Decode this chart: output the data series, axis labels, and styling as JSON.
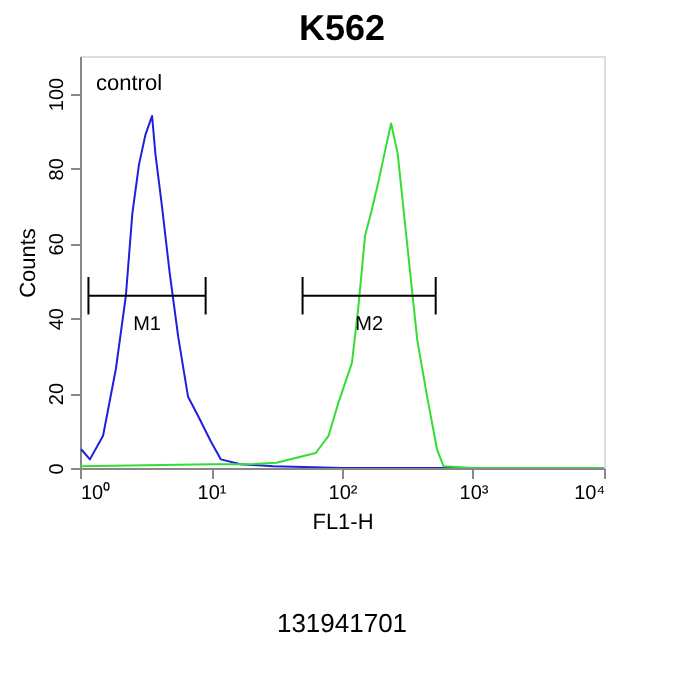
{
  "chart_data": {
    "type": "line",
    "title": "K562",
    "xlabel": "FL1-H",
    "ylabel": "Counts",
    "series": [
      {
        "color": "#1f1fdd",
        "x": [
          1.02,
          1.19,
          1.5,
          1.88,
          2.24,
          2.51,
          2.82,
          3.16,
          3.55,
          3.76,
          4.22,
          4.84,
          5.62,
          6.68,
          7.94,
          10,
          11.9,
          16.8,
          30,
          100,
          1000,
          10000
        ],
        "values": [
          5,
          2.3,
          8.6,
          26.5,
          46,
          68,
          81,
          89,
          94,
          84,
          70,
          52,
          35,
          19,
          14,
          7,
          2.3,
          1,
          0.5,
          0,
          0,
          0
        ]
      },
      {
        "color": "#33dd33",
        "x": [
          1,
          10,
          20,
          31.6,
          63,
          79,
          94,
          119,
          133,
          150,
          168,
          188,
          211,
          237,
          266,
          316,
          376,
          447,
          531,
          596,
          1000,
          10000
        ],
        "values": [
          0.5,
          1,
          1,
          1.4,
          4,
          8.6,
          17.5,
          28,
          42.6,
          62,
          68.6,
          75.8,
          84,
          92,
          84,
          59,
          34,
          19,
          5,
          0.5,
          0,
          0
        ]
      },
      {
        "name": "M1",
        "color": "#000000",
        "x": [
          1.16,
          9.1
        ],
        "values": [
          46,
          46
        ],
        "errors": [
          5,
          5
        ]
      },
      {
        "name": "M2",
        "color": "#000000",
        "x": [
          50,
          519
        ],
        "values": [
          46,
          46
        ],
        "errors": [
          5,
          5
        ]
      }
    ],
    "log": "x",
    "xlim": [
      1,
      10000
    ],
    "xticks": [
      {
        "value": 1,
        "label": "10⁰"
      },
      {
        "value": 10,
        "label": "10¹"
      },
      {
        "value": 100,
        "label": "10²"
      },
      {
        "value": 1000,
        "label": "10³"
      },
      {
        "value": 10000,
        "label": "10⁴"
      }
    ],
    "ylim": [
      0,
      110
    ],
    "yticks": [
      0,
      20,
      40,
      60,
      80,
      100
    ],
    "annotations": [
      "control",
      "131941701"
    ],
    "grid": false,
    "legend": false
  }
}
